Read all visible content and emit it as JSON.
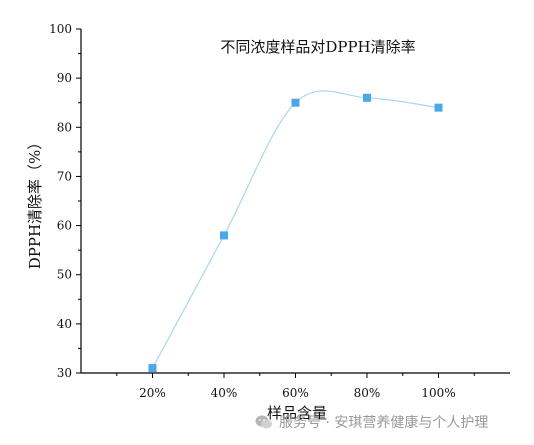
{
  "chart_data": {
    "type": "line",
    "title": "不同浓度样品对DPPH清除率",
    "xlabel": "样品含量",
    "ylabel": "DPPH清除率（%）",
    "categories": [
      "20%",
      "40%",
      "60%",
      "80%",
      "100%"
    ],
    "values": [
      31,
      58,
      85,
      86,
      84
    ],
    "ylim": [
      30,
      100
    ],
    "yticks": [
      "30",
      "40",
      "50",
      "60",
      "70",
      "80",
      "90",
      "100"
    ],
    "grid": false,
    "legend": "none",
    "marker": "square",
    "line_color": "#a9d8ee",
    "marker_color": "#4aa8e6"
  },
  "watermark": {
    "icon": "wechat-icon",
    "text": "服务号 · 安琪营养健康与个人护理"
  }
}
